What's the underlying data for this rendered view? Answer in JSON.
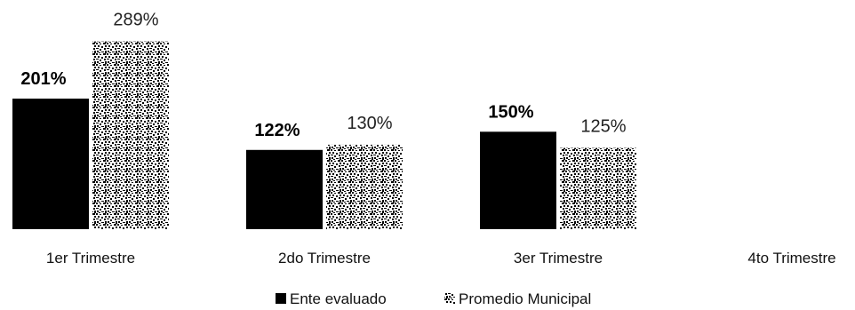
{
  "chart_data": {
    "type": "bar",
    "title": "",
    "xlabel": "",
    "ylabel": "",
    "ylim": [
      0,
      320
    ],
    "grid": false,
    "legend_position": "bottom",
    "categories": [
      "1er Trimestre",
      "2do Trimestre",
      "3er Trimestre",
      "4to Trimestre"
    ],
    "series": [
      {
        "name": "Ente evaluado",
        "values": [
          201,
          122,
          150,
          null
        ],
        "labels": [
          "201%",
          "122%",
          "150%",
          ""
        ],
        "color": "#000000",
        "pattern": "solid"
      },
      {
        "name": "Promedio Municipal",
        "values": [
          289,
          130,
          125,
          null
        ],
        "labels": [
          "289%",
          "130%",
          "125%",
          ""
        ],
        "color": "#000000",
        "pattern": "speckle"
      }
    ]
  }
}
